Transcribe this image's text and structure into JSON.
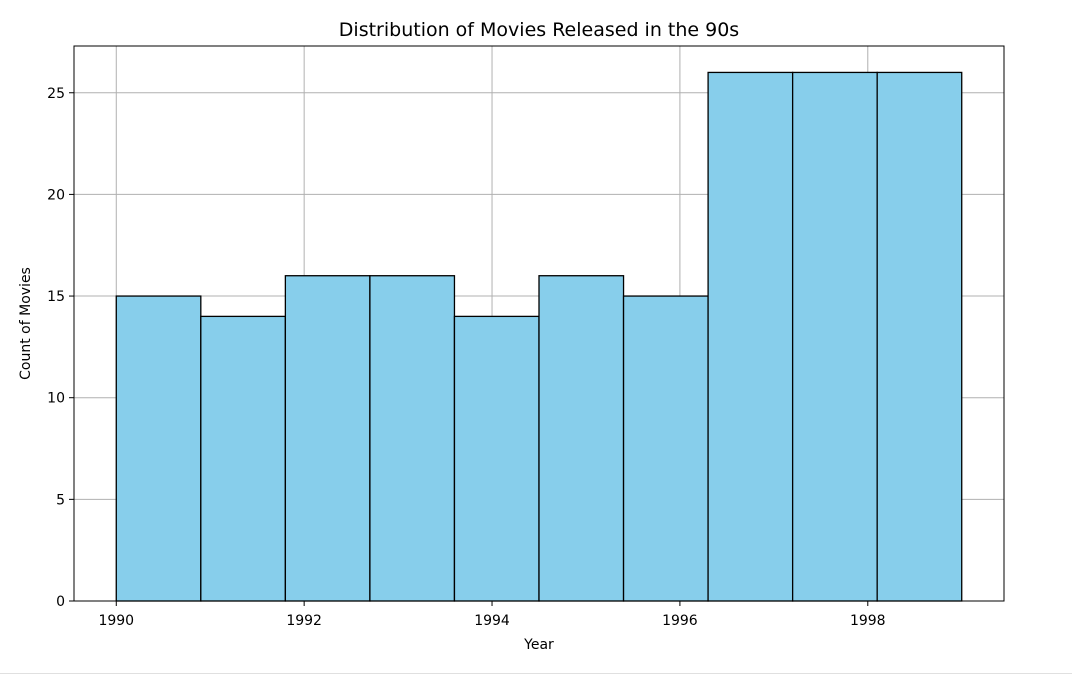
{
  "chart_data": {
    "type": "bar",
    "title": "Distribution of Movies Released in the 90s",
    "xlabel": "Year",
    "ylabel": "Count of Movies",
    "bins": [
      {
        "start": 1990.0,
        "end": 1990.9,
        "value": 15
      },
      {
        "start": 1990.9,
        "end": 1991.8,
        "value": 14
      },
      {
        "start": 1991.8,
        "end": 1992.7,
        "value": 16
      },
      {
        "start": 1992.7,
        "end": 1993.6,
        "value": 16
      },
      {
        "start": 1993.6,
        "end": 1994.5,
        "value": 14
      },
      {
        "start": 1994.5,
        "end": 1995.4,
        "value": 16
      },
      {
        "start": 1995.4,
        "end": 1996.3,
        "value": 15
      },
      {
        "start": 1996.3,
        "end": 1997.2,
        "value": 26
      },
      {
        "start": 1997.2,
        "end": 1998.1,
        "value": 26
      },
      {
        "start": 1998.1,
        "end": 1999.0,
        "value": 26
      }
    ],
    "xlim": [
      1989.55,
      1999.45
    ],
    "ylim": [
      0,
      27.3
    ],
    "x_ticks": [
      1990,
      1992,
      1994,
      1996,
      1998
    ],
    "y_ticks": [
      0,
      5,
      10,
      15,
      20,
      25
    ],
    "grid": true,
    "colors": {
      "bar_fill": "#87ceeb",
      "bar_edge": "#000000",
      "grid": "#b0b0b0"
    }
  }
}
